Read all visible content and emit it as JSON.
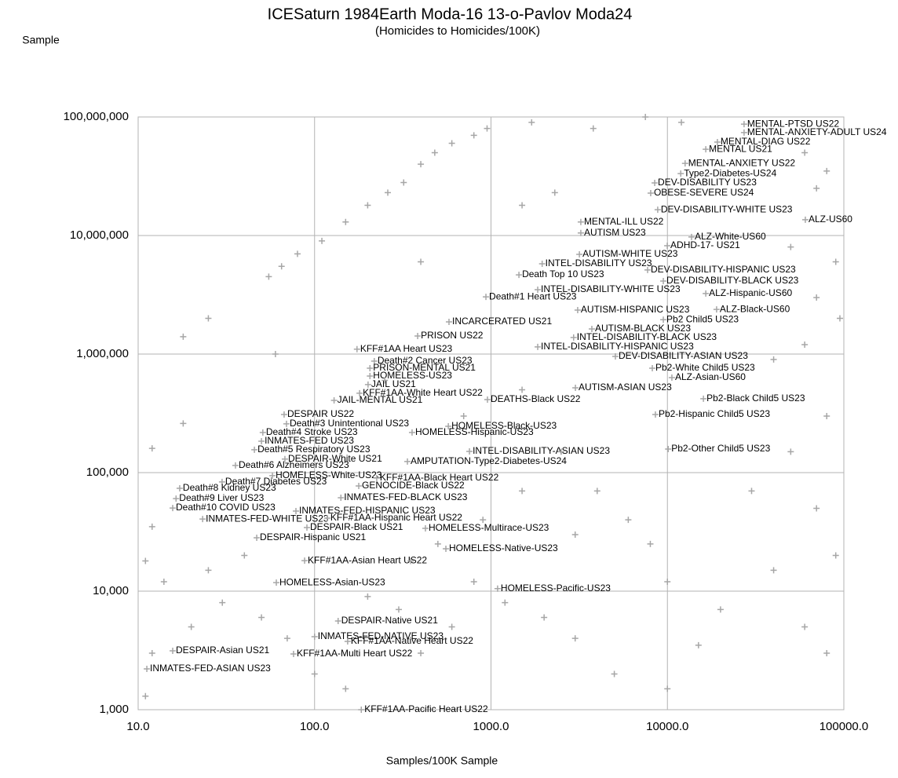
{
  "chart_data": {
    "type": "scatter",
    "title": "ICESaturn 1984Earth Moda-16 13-o-Pavlov Moda24",
    "subtitle": "(Homicides to Homicides/100K)",
    "x_label": "Samples/100K Sample",
    "y_label": "Sample",
    "x_log": true,
    "y_log": true,
    "grid": true,
    "color": "#a6a6a6",
    "xlim": [
      10,
      100000
    ],
    "ylim": [
      1000,
      100000000
    ],
    "xticks": [
      {
        "value": 10,
        "label": "10.0"
      },
      {
        "value": 100,
        "label": "100.0"
      },
      {
        "value": 1000,
        "label": "1000.0"
      },
      {
        "value": 10000,
        "label": "10000.0"
      },
      {
        "value": 100000,
        "label": "100000.0"
      }
    ],
    "yticks": [
      {
        "value": 1000,
        "label": "1,000"
      },
      {
        "value": 10000,
        "label": "10,000"
      },
      {
        "value": 100000,
        "label": "100,000"
      },
      {
        "value": 1000000,
        "label": "1,000,000"
      },
      {
        "value": 10000000,
        "label": "10,000,000"
      },
      {
        "value": 100000000,
        "label": "100,000,000"
      }
    ],
    "series": [
      {
        "labels": [
          "MENTAL-PTSD US22",
          "MENTAL-ANXIETY-ADULT US24",
          "MENTAL-DIAG US22",
          "MENTAL US21",
          "MENTAL-ANXIETY US22",
          "Type2-Diabetes-US24",
          "DEV-DISABILITY US23",
          "OBESE-SEVERE US24",
          "DEV-DISABILITY-WHITE US23",
          "ALZ-US60",
          "MENTAL-ILL US22",
          "AUTISM US23",
          "ALZ-White-US60",
          "ADHD-17- US21",
          "AUTISM-WHITE US23",
          "INTEL-DISABILITY US23",
          "DEV-DISABILITY-HISPANIC US23",
          "Death Top 10 US23",
          "DEV-DISABILITY-BLACK US23",
          "INTEL-DISABILITY-WHITE US23",
          "ALZ-Hispanic-US60",
          "Death#1 Heart US23",
          "AUTISM-HISPANIC US23",
          "ALZ-Black-US60",
          "Pb2 Child5 US23",
          "INCARCERATED US21",
          "AUTISM-BLACK US23",
          "PRISON US22",
          "INTEL-DISABILITY-BLACK US23",
          "INTEL-DISABILITY-HISPANIC US23",
          "KFF#1AA Heart US23",
          "DEV-DISABILITY-ASIAN US23",
          "Death#2 Cancer US23",
          "Pb2-White Child5 US23",
          "PRISON-MENTAL US21",
          "HOMELESS-US23",
          "ALZ-Asian-US60",
          "JAIL US21",
          "KFF#1AA-White Heart US22",
          "AUTISM-ASIAN US23",
          "Pb2-Black Child5 US23",
          "JAIL-MENTAL US21",
          "DEATHS-Black US22",
          "DESPAIR US22",
          "Pb2-Hispanic Child5 US23",
          "Death#3 Unintentional US23",
          "HOMELESS-Black-US23",
          "Death#4 Stroke US23",
          "HOMELESS-Hispanic-US23",
          "INMATES-FED US23",
          "Death#5 Respiratory US23",
          "INTEL-DISABILITY-ASIAN US23",
          "Pb2-Other Child5 US23",
          "DESPAIR-White US21",
          "AMPUTATION-Type2-Diabetes-US24",
          "Death#6 Alzheimers US23",
          "HOMELESS-White-US23",
          "KFF#1AA-Black Heart US22",
          "Death#7 Diabetes US23",
          "GENOCIDE-Black US22",
          "Death#8 Kidney US23",
          "INMATES-FED-BLACK US23",
          "Death#9 Liver US23",
          "Death#10 COVID US23",
          "INMATES-FED-HISPANIC US23",
          "INMATES-FED-WHITE US23",
          "KFF#1AA-Hispanic Heart US22",
          "DESPAIR-Black US21",
          "HOMELESS-Multirace-US23",
          "DESPAIR-Hispanic US21",
          "HOMELESS-Native-US23",
          "KFF#1AA-Asian Heart US22",
          "HOMELESS-Asian-US23",
          "HOMELESS-Pacific-US23",
          "DESPAIR-Native US21",
          "INMATES-FED-NATIVE US23",
          "KFF#1AA-Native Heart US22",
          "DESPAIR-Asian US21",
          "KFF#1AA-Multi Heart US22",
          "INMATES-FED-ASIAN US23",
          "KFF#1AA-Pacific Heart US22"
        ],
        "x": [
          27200,
          27200,
          19200,
          16500,
          12600,
          11900,
          8470,
          8040,
          8810,
          60500,
          3230,
          3230,
          13700,
          9980,
          3170,
          1950,
          7720,
          1440,
          9480,
          1840,
          16500,
          936,
          3100,
          19000,
          9480,
          578,
          3730,
          384,
          2940,
          1840,
          174,
          5070,
          218,
          8210,
          206,
          206,
          10600,
          201,
          180,
          3010,
          16000,
          129,
          955,
          67.2,
          8550,
          69.3,
          573,
          50.9,
          357,
          50.0,
          45.6,
          755,
          10100,
          67.9,
          336,
          35.6,
          57.7,
          225,
          29.9,
          178,
          17.2,
          141,
          16.4,
          15.7,
          78.4,
          23.2,
          118,
          90.5,
          425,
          47.0,
          555,
          87.8,
          60.7,
          1090,
          136,
          100,
          154,
          15.7,
          76.0,
          11.2,
          184
        ],
        "y": [
          87000000,
          73800000,
          61400000,
          53400000,
          40600000,
          33300000,
          27800000,
          22800000,
          16500000,
          13600000,
          13000000,
          10500000,
          9710000,
          8200000,
          6930000,
          5780000,
          5120000,
          4660000,
          4130000,
          3490000,
          3240000,
          3040000,
          2350000,
          2380000,
          1950000,
          1870000,
          1630000,
          1420000,
          1380000,
          1150000,
          1100000,
          955000,
          871000,
          760000,
          760000,
          653000,
          633000,
          553000,
          467000,
          519000,
          420000,
          407000,
          413000,
          309000,
          309000,
          258000,
          246000,
          218000,
          218000,
          184000,
          156000,
          151000,
          158000,
          130000,
          124000,
          115000,
          94200,
          90000,
          83400,
          77200,
          73700,
          61400,
          60400,
          50300,
          47400,
          40600,
          41300,
          34400,
          33900,
          28200,
          22800,
          18100,
          11800,
          10500,
          5600,
          4130,
          3770,
          3140,
          2950,
          2210,
          1000
        ]
      },
      {
        "x": [
          18,
          25,
          55,
          65,
          80,
          110,
          150,
          200,
          260,
          320,
          400,
          480,
          600,
          800,
          950,
          1700,
          3800,
          7500,
          12000,
          60000,
          80000,
          70000,
          1500,
          2300,
          50000,
          90000,
          70000,
          95000,
          60000,
          40000,
          80000,
          50000,
          30000,
          70000,
          90000,
          40000,
          20000,
          60000,
          80000,
          15000,
          10000,
          5000,
          3000,
          2000,
          1200,
          800,
          600,
          400,
          300,
          200,
          150,
          100,
          70,
          50,
          30,
          20,
          12,
          11,
          14,
          25,
          40,
          12,
          11,
          12,
          18,
          60,
          400,
          250,
          700,
          1500,
          2500,
          4000,
          6000,
          8000,
          10000,
          3000,
          1500,
          900,
          500,
          350
        ],
        "y": [
          1400000,
          2000000,
          4500000,
          5500000,
          7000000,
          9000000,
          13000000,
          18000000,
          23000000,
          28000000,
          40000000,
          50000000,
          60000000,
          70000000,
          80000000,
          90000000,
          80000000,
          100000000,
          90000000,
          50000000,
          35000000,
          25000000,
          18000000,
          23000000,
          8000000,
          6000000,
          3000000,
          2000000,
          1200000,
          900000,
          300000,
          150000,
          70000,
          50000,
          20000,
          15000,
          7000,
          5000,
          3000,
          3500,
          1500,
          2000,
          4000,
          6000,
          8000,
          12000,
          5000,
          3000,
          7000,
          9000,
          1500,
          2000,
          4000,
          6000,
          8000,
          5000,
          3000,
          1300,
          12000,
          15000,
          20000,
          35000,
          18000,
          160000,
          260000,
          1000000,
          6000000,
          600000,
          300000,
          500000,
          150000,
          70000,
          40000,
          25000,
          12000,
          30000,
          70000,
          40000,
          25000,
          18000
        ]
      }
    ]
  }
}
